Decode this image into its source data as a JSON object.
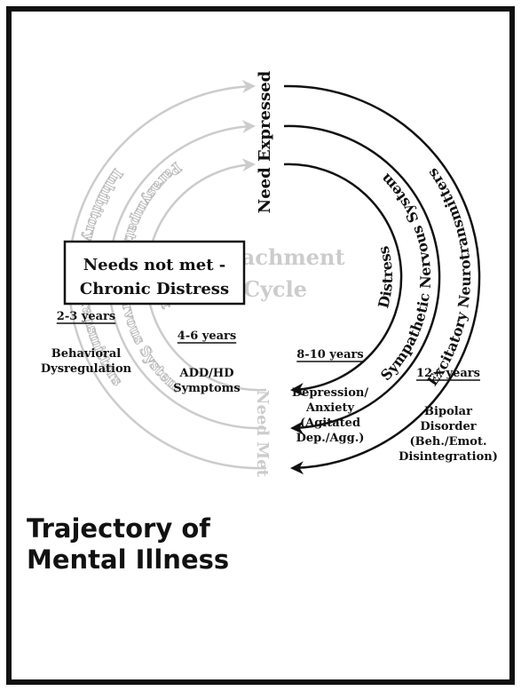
{
  "cycle": {
    "top_label": "Need Expressed",
    "bottom_label": "Need Met",
    "center": [
      "Attachment",
      "Cycle"
    ],
    "stress_arcs": [
      "Distress",
      "Sympathetic Nervous System",
      "Excitatory Neurotransmitters"
    ],
    "calm_arcs": [
      "Comfort",
      "Parasympathetic Nervous System",
      "Inhibitory Neurotransmitters"
    ]
  },
  "box": [
    "Needs not met -",
    "Chronic Distress"
  ],
  "stages": [
    {
      "age": "2-3 years",
      "lines": [
        "Behavioral",
        "Dysregulation"
      ]
    },
    {
      "age": "4-6 years",
      "lines": [
        "ADD/HD",
        "Symptoms"
      ]
    },
    {
      "age": "8-10 years",
      "lines": [
        "Depression/",
        "Anxiety",
        "(Agitated",
        "Dep./Agg.)"
      ]
    },
    {
      "age": "12+ years",
      "lines": [
        "Bipolar",
        "Disorder",
        "(Beh./Emot.",
        "Disintegration)"
      ]
    }
  ],
  "title": [
    "Trajectory of",
    "Mental Illness"
  ]
}
